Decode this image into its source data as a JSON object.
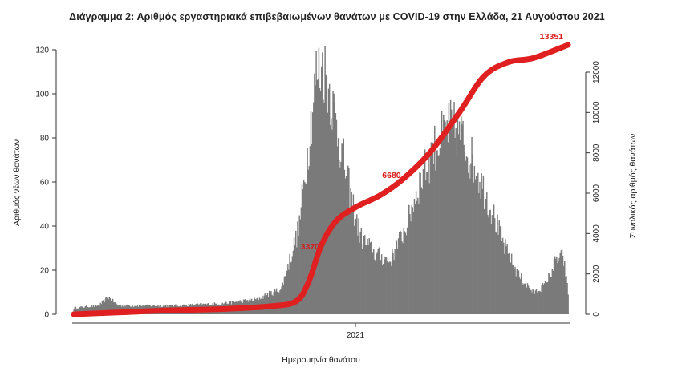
{
  "chart_data": {
    "type": "bar",
    "title": "Διάγραμμα 2: Αριθμός εργαστηριακά επιβεβαιωμένων θανάτων με COVID-19 στην Ελλάδα, 21 Αυγούστου 2021",
    "xlabel": "Ημερομηνία θανάτου",
    "ylabel_left": "Αριθμός νέων θανάτων",
    "ylabel_right": "Συνολικός αριθμός θανάτων",
    "x_ticks": [
      "2021"
    ],
    "left_axis": {
      "ylim": [
        0,
        125
      ],
      "ticks": [
        0,
        20,
        40,
        60,
        80,
        100,
        120
      ]
    },
    "right_axis": {
      "ylim": [
        0,
        13700
      ],
      "ticks": [
        0,
        2000,
        4000,
        6000,
        8000,
        10000,
        12000
      ]
    },
    "daily_deaths_envelope": [
      {
        "period": 0.0,
        "value": 3
      },
      {
        "period": 0.05,
        "value": 4
      },
      {
        "period": 0.07,
        "value": 8
      },
      {
        "period": 0.09,
        "value": 4
      },
      {
        "period": 0.2,
        "value": 4
      },
      {
        "period": 0.3,
        "value": 5
      },
      {
        "period": 0.37,
        "value": 7
      },
      {
        "period": 0.42,
        "value": 12
      },
      {
        "period": 0.455,
        "value": 40
      },
      {
        "period": 0.475,
        "value": 80
      },
      {
        "period": 0.49,
        "value": 112
      },
      {
        "period": 0.505,
        "value": 116
      },
      {
        "period": 0.52,
        "value": 102
      },
      {
        "period": 0.54,
        "value": 78
      },
      {
        "period": 0.56,
        "value": 55
      },
      {
        "period": 0.58,
        "value": 36
      },
      {
        "period": 0.61,
        "value": 28
      },
      {
        "period": 0.64,
        "value": 25
      },
      {
        "period": 0.67,
        "value": 40
      },
      {
        "period": 0.7,
        "value": 62
      },
      {
        "period": 0.73,
        "value": 78
      },
      {
        "period": 0.76,
        "value": 88
      },
      {
        "period": 0.78,
        "value": 85
      },
      {
        "period": 0.81,
        "value": 70
      },
      {
        "period": 0.84,
        "value": 52
      },
      {
        "period": 0.87,
        "value": 32
      },
      {
        "period": 0.9,
        "value": 18
      },
      {
        "period": 0.93,
        "value": 10
      },
      {
        "period": 0.955,
        "value": 14
      },
      {
        "period": 0.975,
        "value": 25
      },
      {
        "period": 0.99,
        "value": 27
      },
      {
        "period": 1.0,
        "value": 10
      }
    ],
    "cumulative_deaths": [
      {
        "period": 0.0,
        "value": 0
      },
      {
        "period": 0.1,
        "value": 100
      },
      {
        "period": 0.2,
        "value": 200
      },
      {
        "period": 0.3,
        "value": 260
      },
      {
        "period": 0.4,
        "value": 400
      },
      {
        "period": 0.45,
        "value": 650
      },
      {
        "period": 0.475,
        "value": 1600
      },
      {
        "period": 0.5,
        "value": 3370
      },
      {
        "period": 0.53,
        "value": 4600
      },
      {
        "period": 0.57,
        "value": 5300
      },
      {
        "period": 0.62,
        "value": 5900
      },
      {
        "period": 0.665,
        "value": 6680
      },
      {
        "period": 0.72,
        "value": 8000
      },
      {
        "period": 0.78,
        "value": 10000
      },
      {
        "period": 0.83,
        "value": 11800
      },
      {
        "period": 0.88,
        "value": 12500
      },
      {
        "period": 0.93,
        "value": 12700
      },
      {
        "period": 1.0,
        "value": 13351
      }
    ],
    "annotations": [
      {
        "label": "3370",
        "period": 0.5,
        "value": 3370
      },
      {
        "label": "6680",
        "period": 0.665,
        "value": 6680
      },
      {
        "label": "13351",
        "period": 1.0,
        "value": 13351
      }
    ],
    "colors": {
      "bars": "#7a7a7a",
      "cumulative_line": "#e02020",
      "annotations": "#d81b1b"
    },
    "grid": false
  }
}
